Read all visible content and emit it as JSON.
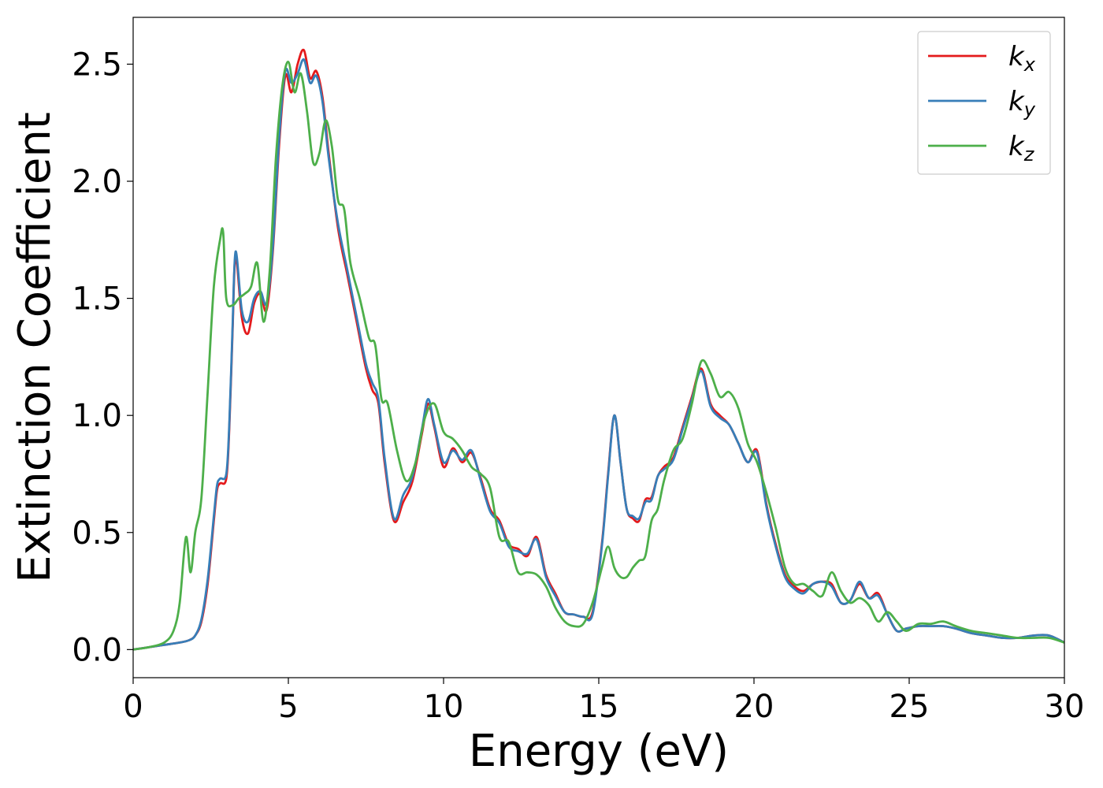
{
  "chart_data": {
    "type": "line",
    "xlabel": "Energy (eV)",
    "ylabel": "Extinction Coefficient",
    "xlim": [
      0,
      30
    ],
    "ylim": [
      -0.12,
      2.7
    ],
    "xticks": [
      0,
      5,
      10,
      15,
      20,
      25,
      30
    ],
    "xtick_labels": [
      "0",
      "5",
      "10",
      "15",
      "20",
      "25",
      "30"
    ],
    "yticks": [
      0.0,
      0.5,
      1.0,
      1.5,
      2.0,
      2.5
    ],
    "ytick_labels": [
      "0.0",
      "0.5",
      "1.0",
      "1.5",
      "2.0",
      "2.5"
    ],
    "grid": false,
    "legend_position": "top-right",
    "series": [
      {
        "name": "k",
        "subscript": "x",
        "color": "#e41a1c",
        "x": [
          0,
          0.5,
          1.0,
          1.5,
          1.8,
          2.0,
          2.2,
          2.4,
          2.6,
          2.7,
          2.8,
          3.0,
          3.1,
          3.2,
          3.3,
          3.5,
          3.7,
          3.9,
          4.1,
          4.3,
          4.5,
          4.7,
          4.9,
          5.1,
          5.3,
          5.5,
          5.7,
          5.9,
          6.1,
          6.3,
          6.6,
          6.9,
          7.2,
          7.5,
          7.7,
          7.9,
          8.1,
          8.4,
          8.7,
          9.0,
          9.3,
          9.5,
          9.7,
          10.0,
          10.3,
          10.6,
          10.9,
          11.2,
          11.5,
          11.8,
          12.1,
          12.4,
          12.7,
          13.0,
          13.3,
          13.6,
          13.9,
          14.2,
          14.5,
          14.8,
          15.1,
          15.3,
          15.5,
          15.7,
          15.9,
          16.1,
          16.3,
          16.5,
          16.7,
          16.9,
          17.1,
          17.4,
          17.7,
          18.0,
          18.3,
          18.6,
          18.9,
          19.2,
          19.5,
          19.8,
          20.1,
          20.4,
          20.7,
          21.0,
          21.3,
          21.6,
          21.9,
          22.2,
          22.5,
          22.8,
          23.1,
          23.4,
          23.7,
          24.0,
          24.3,
          24.6,
          24.9,
          25.3,
          25.7,
          26.1,
          26.5,
          27.0,
          27.5,
          28.0,
          28.5,
          29.0,
          29.5,
          30.0
        ],
        "y": [
          0,
          0.01,
          0.02,
          0.03,
          0.04,
          0.06,
          0.12,
          0.28,
          0.55,
          0.68,
          0.71,
          0.73,
          0.95,
          1.35,
          1.68,
          1.42,
          1.35,
          1.48,
          1.52,
          1.45,
          1.7,
          2.15,
          2.45,
          2.38,
          2.5,
          2.56,
          2.44,
          2.47,
          2.36,
          2.12,
          1.8,
          1.6,
          1.4,
          1.2,
          1.11,
          1.05,
          0.8,
          0.55,
          0.63,
          0.72,
          0.92,
          1.05,
          0.95,
          0.78,
          0.86,
          0.8,
          0.84,
          0.73,
          0.6,
          0.55,
          0.45,
          0.43,
          0.4,
          0.48,
          0.32,
          0.24,
          0.16,
          0.15,
          0.14,
          0.16,
          0.45,
          0.75,
          1.0,
          0.8,
          0.6,
          0.56,
          0.55,
          0.64,
          0.65,
          0.74,
          0.78,
          0.82,
          0.95,
          1.08,
          1.2,
          1.05,
          1.0,
          0.96,
          0.88,
          0.8,
          0.85,
          0.62,
          0.45,
          0.32,
          0.27,
          0.25,
          0.28,
          0.29,
          0.28,
          0.2,
          0.21,
          0.28,
          0.22,
          0.24,
          0.15,
          0.08,
          0.09,
          0.1,
          0.1,
          0.1,
          0.09,
          0.07,
          0.06,
          0.05,
          0.05,
          0.06,
          0.06,
          0.03
        ]
      },
      {
        "name": "k",
        "subscript": "y",
        "color": "#377eb8",
        "x": [
          0,
          0.5,
          1.0,
          1.5,
          1.8,
          2.0,
          2.2,
          2.4,
          2.6,
          2.7,
          2.8,
          3.0,
          3.1,
          3.2,
          3.3,
          3.5,
          3.7,
          3.9,
          4.1,
          4.3,
          4.5,
          4.7,
          4.9,
          5.1,
          5.3,
          5.5,
          5.7,
          5.9,
          6.1,
          6.3,
          6.6,
          6.9,
          7.2,
          7.5,
          7.7,
          7.9,
          8.1,
          8.4,
          8.7,
          9.0,
          9.3,
          9.5,
          9.7,
          10.0,
          10.3,
          10.6,
          10.9,
          11.2,
          11.5,
          11.8,
          12.1,
          12.4,
          12.7,
          13.0,
          13.3,
          13.6,
          13.9,
          14.2,
          14.5,
          14.8,
          15.1,
          15.3,
          15.5,
          15.7,
          15.9,
          16.1,
          16.3,
          16.5,
          16.7,
          16.9,
          17.1,
          17.4,
          17.7,
          18.0,
          18.3,
          18.6,
          18.9,
          19.2,
          19.5,
          19.8,
          20.1,
          20.4,
          20.7,
          21.0,
          21.3,
          21.6,
          21.9,
          22.2,
          22.5,
          22.8,
          23.1,
          23.4,
          23.7,
          24.0,
          24.3,
          24.6,
          24.9,
          25.3,
          25.7,
          26.1,
          26.5,
          27.0,
          27.5,
          28.0,
          28.5,
          29.0,
          29.5,
          30.0
        ],
        "y": [
          0,
          0.01,
          0.02,
          0.03,
          0.04,
          0.06,
          0.13,
          0.3,
          0.57,
          0.7,
          0.73,
          0.75,
          0.97,
          1.37,
          1.7,
          1.45,
          1.4,
          1.5,
          1.53,
          1.48,
          1.72,
          2.18,
          2.47,
          2.42,
          2.46,
          2.52,
          2.42,
          2.45,
          2.34,
          2.1,
          1.82,
          1.62,
          1.42,
          1.22,
          1.14,
          1.07,
          0.82,
          0.56,
          0.66,
          0.74,
          0.94,
          1.07,
          0.96,
          0.8,
          0.85,
          0.81,
          0.85,
          0.72,
          0.59,
          0.54,
          0.44,
          0.42,
          0.41,
          0.47,
          0.31,
          0.23,
          0.16,
          0.15,
          0.14,
          0.15,
          0.44,
          0.74,
          1.0,
          0.8,
          0.6,
          0.57,
          0.56,
          0.63,
          0.64,
          0.74,
          0.77,
          0.81,
          0.94,
          1.07,
          1.19,
          1.04,
          0.99,
          0.96,
          0.88,
          0.8,
          0.84,
          0.61,
          0.44,
          0.31,
          0.26,
          0.24,
          0.28,
          0.29,
          0.27,
          0.2,
          0.21,
          0.29,
          0.22,
          0.23,
          0.15,
          0.08,
          0.09,
          0.1,
          0.1,
          0.1,
          0.09,
          0.07,
          0.06,
          0.05,
          0.05,
          0.06,
          0.06,
          0.03
        ]
      },
      {
        "name": "k",
        "subscript": "z",
        "color": "#4daf4a",
        "x": [
          0,
          0.5,
          1.0,
          1.3,
          1.5,
          1.7,
          1.85,
          2.0,
          2.2,
          2.4,
          2.6,
          2.8,
          2.9,
          3.0,
          3.2,
          3.4,
          3.6,
          3.8,
          4.0,
          4.2,
          4.4,
          4.6,
          4.8,
          5.0,
          5.2,
          5.4,
          5.6,
          5.8,
          6.0,
          6.2,
          6.4,
          6.6,
          6.8,
          7.0,
          7.3,
          7.6,
          7.8,
          8.0,
          8.2,
          8.5,
          8.8,
          9.1,
          9.4,
          9.7,
          10.0,
          10.3,
          10.6,
          10.9,
          11.2,
          11.5,
          11.8,
          12.1,
          12.4,
          12.7,
          13.0,
          13.3,
          13.6,
          13.9,
          14.2,
          14.5,
          14.8,
          15.1,
          15.3,
          15.5,
          15.7,
          15.9,
          16.1,
          16.3,
          16.5,
          16.7,
          16.9,
          17.1,
          17.4,
          17.7,
          18.0,
          18.3,
          18.6,
          18.9,
          19.2,
          19.5,
          19.8,
          20.1,
          20.4,
          20.7,
          21.0,
          21.3,
          21.6,
          21.9,
          22.2,
          22.5,
          22.8,
          23.1,
          23.4,
          23.7,
          24.0,
          24.3,
          24.6,
          24.9,
          25.3,
          25.7,
          26.1,
          26.5,
          27.0,
          27.5,
          28.0,
          28.5,
          29.0,
          29.5,
          30.0
        ],
        "y": [
          0,
          0.01,
          0.03,
          0.08,
          0.2,
          0.48,
          0.33,
          0.5,
          0.65,
          1.1,
          1.55,
          1.75,
          1.78,
          1.5,
          1.47,
          1.5,
          1.52,
          1.55,
          1.65,
          1.4,
          1.62,
          2.1,
          2.4,
          2.51,
          2.38,
          2.46,
          2.3,
          2.08,
          2.12,
          2.26,
          2.15,
          1.92,
          1.88,
          1.65,
          1.5,
          1.33,
          1.3,
          1.07,
          1.05,
          0.85,
          0.72,
          0.8,
          0.99,
          1.05,
          0.93,
          0.9,
          0.85,
          0.78,
          0.75,
          0.69,
          0.48,
          0.46,
          0.33,
          0.33,
          0.32,
          0.27,
          0.18,
          0.12,
          0.1,
          0.11,
          0.2,
          0.35,
          0.44,
          0.35,
          0.31,
          0.31,
          0.35,
          0.38,
          0.4,
          0.55,
          0.6,
          0.72,
          0.85,
          0.9,
          1.05,
          1.23,
          1.18,
          1.08,
          1.1,
          1.03,
          0.88,
          0.8,
          0.67,
          0.52,
          0.35,
          0.28,
          0.28,
          0.25,
          0.23,
          0.33,
          0.25,
          0.2,
          0.22,
          0.19,
          0.12,
          0.16,
          0.12,
          0.08,
          0.11,
          0.11,
          0.12,
          0.1,
          0.08,
          0.07,
          0.06,
          0.05,
          0.05,
          0.05,
          0.03
        ]
      }
    ]
  }
}
